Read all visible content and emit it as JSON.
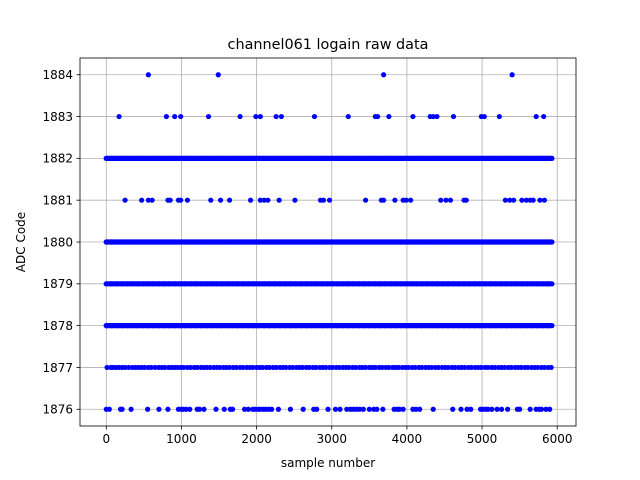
{
  "chart_data": {
    "type": "scatter",
    "title": "channel061 logain raw data",
    "xlabel": "sample number",
    "ylabel": "ADC Code",
    "xlim": [
      -350,
      6250
    ],
    "ylim": [
      1875.6,
      1884.4
    ],
    "xticks": [
      0,
      1000,
      2000,
      3000,
      4000,
      5000,
      6000
    ],
    "yticks": [
      1876,
      1877,
      1878,
      1879,
      1880,
      1881,
      1882,
      1883,
      1884
    ],
    "grid": true,
    "marker_color": "#0000ff",
    "n_samples": 5930,
    "levels": [
      {
        "y": 1876,
        "x": [
          0,
          40,
          190,
          210,
          330,
          550,
          700,
          820,
          960,
          1000,
          1020,
          1060,
          1110,
          1210,
          1240,
          1300,
          1460,
          1570,
          1650,
          1680,
          1840,
          1890,
          1950,
          1980,
          2020,
          2050,
          2090,
          2120,
          2160,
          2200,
          2290,
          2450,
          2620,
          2760,
          2800,
          2950,
          3050,
          3110,
          3200,
          3250,
          3290,
          3330,
          3370,
          3420,
          3500,
          3560,
          3600,
          3680,
          3830,
          3870,
          3900,
          3950,
          4080,
          4120,
          4170,
          4350,
          4610,
          4720,
          4800,
          4850,
          4980,
          5010,
          5050,
          5080,
          5130,
          5200,
          5260,
          5340,
          5470,
          5500,
          5640,
          5720,
          5760,
          5790,
          5850,
          5900
        ]
      },
      {
        "y": 1877,
        "x": [
          10,
          60,
          90,
          130,
          170,
          210,
          250,
          300,
          350,
          390,
          430,
          470,
          510,
          560,
          600,
          650,
          700,
          740,
          780,
          830,
          870,
          910,
          950,
          990,
          1030,
          1080,
          1120,
          1170,
          1210,
          1260,
          1300,
          1340,
          1380,
          1430,
          1470,
          1510,
          1560,
          1600,
          1640,
          1690,
          1730,
          1780,
          1820,
          1870,
          1910,
          1950,
          2000,
          2040,
          2080,
          2130,
          2170,
          2220,
          2260,
          2310,
          2350,
          2390,
          2440,
          2480,
          2530,
          2570,
          2610,
          2660,
          2700,
          2750,
          2790,
          2840,
          2880,
          2920,
          2970,
          3010,
          3060,
          3100,
          3150,
          3190,
          3230,
          3280,
          3320,
          3370,
          3410,
          3450,
          3500,
          3540,
          3580,
          3630,
          3670,
          3720,
          3760,
          3810,
          3850,
          3890,
          3940,
          3980,
          4020,
          4070,
          4110,
          4160,
          4200,
          4250,
          4290,
          4330,
          4380,
          4420,
          4470,
          4510,
          4550,
          4600,
          4640,
          4690,
          4730,
          4770,
          4820,
          4860,
          4910,
          4950,
          4990,
          5040,
          5080,
          5130,
          5170,
          5220,
          5260,
          5300,
          5350,
          5390,
          5440,
          5480,
          5520,
          5570,
          5610,
          5660,
          5700,
          5740,
          5790,
          5830,
          5880,
          5920
        ]
      },
      {
        "y": 1878,
        "x": [
          0,
          5930
        ],
        "continuous": true
      },
      {
        "y": 1879,
        "x": [
          0,
          5930
        ],
        "continuous": true
      },
      {
        "y": 1880,
        "x": [
          0,
          5930
        ],
        "continuous": true
      },
      {
        "y": 1881,
        "x": [
          250,
          470,
          560,
          610,
          820,
          850,
          960,
          990,
          1080,
          1390,
          1520,
          1640,
          1920,
          2050,
          2100,
          2150,
          2300,
          2510,
          2850,
          2890,
          2970,
          3450,
          3660,
          3690,
          3840,
          3950,
          3990,
          4050,
          4450,
          4520,
          4580,
          4760,
          4790,
          5310,
          5370,
          5420,
          5530,
          5590,
          5640,
          5680,
          5770,
          5830
        ]
      },
      {
        "y": 1882,
        "x": [
          0,
          5930
        ],
        "continuous": true
      },
      {
        "y": 1883,
        "x": [
          170,
          800,
          910,
          990,
          1360,
          1780,
          1990,
          2050,
          2260,
          2330,
          2770,
          3220,
          3580,
          3610,
          3760,
          4080,
          4310,
          4350,
          4400,
          4620,
          4990,
          5030,
          5230,
          5720,
          5820
        ]
      },
      {
        "y": 1884,
        "x": [
          560,
          1490,
          3690,
          5400
        ]
      }
    ]
  }
}
